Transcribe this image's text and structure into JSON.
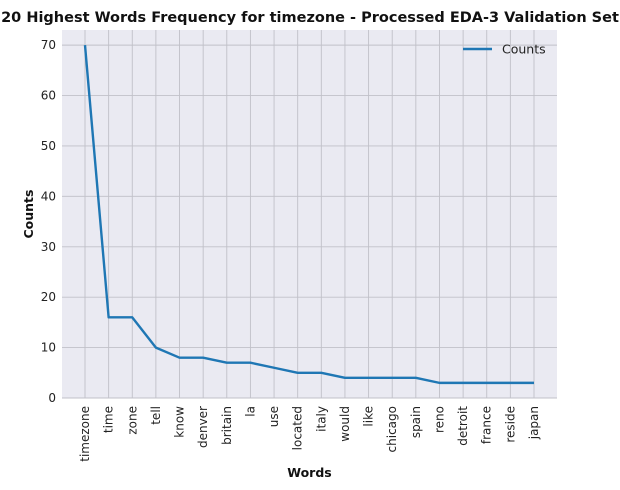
{
  "chart_data": {
    "type": "line",
    "title": "20 Highest Words Frequency for timezone - Processed EDA-3 Validation Set",
    "xlabel": "Words",
    "ylabel": "Counts",
    "categories": [
      "timezone",
      "time",
      "zone",
      "tell",
      "know",
      "denver",
      "britain",
      "la",
      "use",
      "located",
      "italy",
      "would",
      "like",
      "chicago",
      "spain",
      "reno",
      "detroit",
      "france",
      "reside",
      "japan"
    ],
    "series": [
      {
        "name": "Counts",
        "values": [
          70,
          16,
          16,
          10,
          8,
          8,
          7,
          7,
          6,
          5,
          5,
          4,
          4,
          4,
          4,
          3,
          3,
          3,
          3,
          3
        ],
        "color": "#1f77b4"
      }
    ],
    "ylim": [
      0,
      73
    ],
    "yticks": [
      0,
      10,
      20,
      30,
      40,
      50,
      60,
      70
    ],
    "grid": true,
    "legend": "top-right",
    "background": "#eaeaf2",
    "grid_color": "#c0c0c8"
  }
}
